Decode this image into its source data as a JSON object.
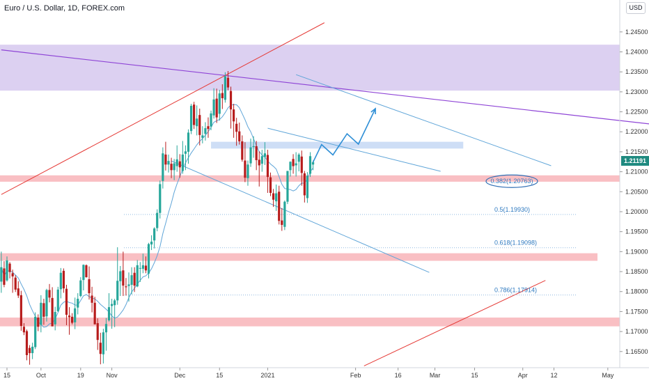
{
  "header": {
    "title": "Euro / U.S. Dollar, 1D, FOREX.com",
    "currency_button": "USD"
  },
  "colors": {
    "up": "#26a69a",
    "down": "#b71c1c",
    "ma": "#5fa5d8",
    "channel": "#5fa5d8",
    "resistance_line": "#8e44d6",
    "trend_line": "#e53935",
    "purple_zone": "#d6c8ee",
    "red_zone": "#f8b4b8",
    "blue_zone": "#c5d8f5",
    "forecast": "#2f8fd6",
    "badge": "#1f8a80"
  },
  "chart_data": {
    "type": "candlestick",
    "symbol": "Euro / U.S. Dollar",
    "interval": "1D",
    "source": "FOREX.com",
    "currency": "USD",
    "last_price": "1.21191",
    "y_axis": {
      "range": [
        1.162,
        1.2495
      ],
      "ticks": [
        "1.16500",
        "1.17000",
        "1.17500",
        "1.18000",
        "1.18500",
        "1.19000",
        "1.19500",
        "1.20000",
        "1.20500",
        "1.21000",
        "1.21500",
        "1.22000",
        "1.22500",
        "1.23000",
        "1.23500",
        "1.24000",
        "1.24500"
      ]
    },
    "x_axis": {
      "ticks": [
        {
          "label": "15",
          "day": 0
        },
        {
          "label": "Oct",
          "day": 12
        },
        {
          "label": "19",
          "day": 26
        },
        {
          "label": "Nov",
          "day": 37
        },
        {
          "label": "Dec",
          "day": 61
        },
        {
          "label": "15",
          "day": 75
        },
        {
          "label": "2021",
          "day": 92
        },
        {
          "label": "Feb",
          "day": 123
        },
        {
          "label": "16",
          "day": 138
        },
        {
          "label": "Mar",
          "day": 151
        },
        {
          "label": "15",
          "day": 165
        },
        {
          "label": "Apr",
          "day": 182
        },
        {
          "label": "12",
          "day": 193
        },
        {
          "label": "May",
          "day": 212
        }
      ]
    },
    "fib_levels": [
      {
        "label": "0.382(1.20763)",
        "price": 1.20763,
        "from_day": 195,
        "to_day": 195
      },
      {
        "label": "0.5(1.19930)",
        "price": 1.1993,
        "from_day": 41,
        "to_day": 172
      },
      {
        "label": "0.618(1.19098)",
        "price": 1.19098,
        "from_day": 41,
        "to_day": 172
      },
      {
        "label": "0.786(1.17914)",
        "price": 1.17914,
        "from_day": 41,
        "to_day": 172
      }
    ],
    "zones": [
      {
        "name": "supply-zone",
        "price_top": 1.2418,
        "price_bottom": 1.2303
      },
      {
        "name": "resistance-zone",
        "price_top": 1.2175,
        "price_bottom": 1.2158
      },
      {
        "name": "support-zone-1",
        "price_top": 1.2091,
        "price_bottom": 1.2075
      },
      {
        "name": "support-zone-2",
        "price_top": 1.1896,
        "price_bottom": 1.1877
      },
      {
        "name": "support-zone-3",
        "price_top": 1.1735,
        "price_bottom": 1.1713
      }
    ],
    "candles": [
      [
        -2,
        1.1825,
        1.19,
        1.1797,
        1.1861
      ],
      [
        -1,
        1.1858,
        1.1876,
        1.1811,
        1.1817
      ],
      [
        0,
        1.1828,
        1.1888,
        1.1825,
        1.1878
      ],
      [
        1,
        1.187,
        1.1874,
        1.1833,
        1.1849
      ],
      [
        2,
        1.1846,
        1.1855,
        1.1797,
        1.1838
      ],
      [
        3,
        1.1835,
        1.1841,
        1.1799,
        1.1805
      ],
      [
        4,
        1.1808,
        1.1826,
        1.1784,
        1.179
      ],
      [
        5,
        1.1791,
        1.1802,
        1.1702,
        1.1714
      ],
      [
        6,
        1.1712,
        1.1721,
        1.1691,
        1.1698
      ],
      [
        7,
        1.1701,
        1.1705,
        1.1628,
        1.1641
      ],
      [
        8,
        1.1659,
        1.1666,
        1.1617,
        1.1646
      ],
      [
        9,
        1.1646,
        1.1672,
        1.1631,
        1.1662
      ],
      [
        10,
        1.1661,
        1.1748,
        1.1656,
        1.1737
      ],
      [
        11,
        1.1735,
        1.1743,
        1.1701,
        1.1712
      ],
      [
        12,
        1.1717,
        1.1791,
        1.1698,
        1.1772
      ],
      [
        13,
        1.1771,
        1.1782,
        1.1717,
        1.1737
      ],
      [
        14,
        1.1738,
        1.1807,
        1.1725,
        1.1804
      ],
      [
        15,
        1.1804,
        1.1819,
        1.1773,
        1.1785
      ],
      [
        16,
        1.1784,
        1.1811,
        1.1713,
        1.1713
      ],
      [
        17,
        1.1718,
        1.1762,
        1.1703,
        1.1749
      ],
      [
        18,
        1.1751,
        1.1812,
        1.1749,
        1.1805
      ],
      [
        19,
        1.1806,
        1.1859,
        1.1783,
        1.1847
      ],
      [
        20,
        1.1852,
        1.1858,
        1.1797,
        1.1808
      ],
      [
        21,
        1.1807,
        1.1817,
        1.1716,
        1.1742
      ],
      [
        22,
        1.174,
        1.1761,
        1.1692,
        1.1736
      ],
      [
        23,
        1.1737,
        1.1746,
        1.1718,
        1.1722
      ],
      [
        24,
        1.1723,
        1.1785,
        1.1706,
        1.1758
      ],
      [
        25,
        1.176,
        1.1796,
        1.1743,
        1.1782
      ],
      [
        26,
        1.1789,
        1.1836,
        1.1786,
        1.1828
      ],
      [
        27,
        1.1829,
        1.1868,
        1.1803,
        1.1867
      ],
      [
        28,
        1.1866,
        1.1868,
        1.1835,
        1.1836
      ],
      [
        29,
        1.1831,
        1.1863,
        1.178,
        1.1796
      ],
      [
        30,
        1.179,
        1.1812,
        1.1748,
        1.1772
      ],
      [
        31,
        1.1772,
        1.1787,
        1.1718,
        1.1718
      ],
      [
        32,
        1.1721,
        1.1733,
        1.1654,
        1.1679
      ],
      [
        33,
        1.1672,
        1.1697,
        1.1618,
        1.1644
      ],
      [
        34,
        1.1643,
        1.1707,
        1.162,
        1.1698
      ],
      [
        35,
        1.1698,
        1.1734,
        1.1652,
        1.1719
      ],
      [
        36,
        1.1728,
        1.1796,
        1.1725,
        1.1761
      ],
      [
        37,
        1.1764,
        1.1782,
        1.1707,
        1.1769
      ],
      [
        38,
        1.1766,
        1.1782,
        1.1711,
        1.1778
      ],
      [
        39,
        1.1778,
        1.1911,
        1.1767,
        1.1827
      ],
      [
        40,
        1.1826,
        1.1864,
        1.1789,
        1.1851
      ],
      [
        41,
        1.1853,
        1.19,
        1.1789,
        1.1815
      ],
      [
        42,
        1.1813,
        1.1834,
        1.179,
        1.1811
      ],
      [
        43,
        1.1814,
        1.1848,
        1.1775,
        1.1818
      ],
      [
        44,
        1.1817,
        1.1861,
        1.1793,
        1.1841
      ],
      [
        45,
        1.1847,
        1.1861,
        1.1799,
        1.1815
      ],
      [
        46,
        1.1813,
        1.1879,
        1.1811,
        1.1866
      ],
      [
        47,
        1.1859,
        1.1874,
        1.1824,
        1.1859
      ],
      [
        48,
        1.1857,
        1.1895,
        1.1846,
        1.1866
      ],
      [
        49,
        1.1865,
        1.1888,
        1.1846,
        1.1853
      ],
      [
        50,
        1.1845,
        1.1922,
        1.1833,
        1.1919
      ],
      [
        51,
        1.1918,
        1.1941,
        1.1904,
        1.1925
      ],
      [
        52,
        1.1928,
        1.1961,
        1.1908,
        1.1958
      ],
      [
        53,
        1.1959,
        1.2006,
        1.1951,
        1.1997
      ],
      [
        54,
        1.1997,
        1.2078,
        1.1983,
        1.2069
      ],
      [
        55,
        1.2077,
        1.2161,
        1.2058,
        1.2146
      ],
      [
        56,
        1.2143,
        1.2175,
        1.2103,
        1.2118
      ],
      [
        57,
        1.2118,
        1.2143,
        1.2098,
        1.2127
      ],
      [
        58,
        1.212,
        1.2135,
        1.2084,
        1.2104
      ],
      [
        59,
        1.2104,
        1.2132,
        1.2079,
        1.2121
      ],
      [
        60,
        1.2114,
        1.2166,
        1.21,
        1.2131
      ],
      [
        61,
        1.2126,
        1.2144,
        1.2085,
        1.2111
      ],
      [
        62,
        1.2102,
        1.2177,
        1.2095,
        1.2143
      ],
      [
        63,
        1.2145,
        1.2166,
        1.2104,
        1.2151
      ],
      [
        64,
        1.215,
        1.2206,
        1.212,
        1.2198
      ],
      [
        65,
        1.2202,
        1.227,
        1.2194,
        1.2265
      ],
      [
        66,
        1.2268,
        1.2275,
        1.2207,
        1.2217
      ],
      [
        67,
        1.2214,
        1.2266,
        1.2191,
        1.2233
      ],
      [
        68,
        1.2242,
        1.2258,
        1.2166,
        1.2192
      ],
      [
        69,
        1.2185,
        1.2214,
        1.2171,
        1.2191
      ],
      [
        70,
        1.2195,
        1.2224,
        1.2178,
        1.2209
      ],
      [
        71,
        1.2214,
        1.2236,
        1.2185,
        1.2207
      ],
      [
        72,
        1.2213,
        1.2253,
        1.2204,
        1.2246
      ],
      [
        73,
        1.2241,
        1.2309,
        1.2233,
        1.2281
      ],
      [
        74,
        1.2283,
        1.2308,
        1.2222,
        1.2236
      ],
      [
        75,
        1.2245,
        1.2305,
        1.2228,
        1.2296
      ],
      [
        76,
        1.2297,
        1.2319,
        1.2257,
        1.2284
      ],
      [
        77,
        1.228,
        1.2349,
        1.2273,
        1.2339
      ],
      [
        78,
        1.2335,
        1.2352,
        1.2304,
        1.2311
      ],
      [
        79,
        1.2302,
        1.2313,
        1.2208,
        1.2256
      ],
      [
        80,
        1.2256,
        1.227,
        1.2185,
        1.2226
      ],
      [
        81,
        1.222,
        1.2235,
        1.2165,
        1.22
      ],
      [
        82,
        1.2201,
        1.2223,
        1.2168,
        1.2176
      ],
      [
        83,
        1.2176,
        1.2191,
        1.2125,
        1.213
      ],
      [
        84,
        1.2128,
        1.2174,
        1.2074,
        1.2085
      ],
      [
        85,
        1.2084,
        1.2128,
        1.2065,
        1.2118
      ],
      [
        86,
        1.2121,
        1.2183,
        1.2112,
        1.2161
      ],
      [
        87,
        1.2162,
        1.2189,
        1.2135,
        1.2164
      ],
      [
        88,
        1.2164,
        1.2177,
        1.2104,
        1.2129
      ],
      [
        89,
        1.213,
        1.2151,
        1.2063,
        1.2116
      ],
      [
        90,
        1.212,
        1.2155,
        1.21,
        1.2139
      ],
      [
        91,
        1.2137,
        1.2174,
        1.2117,
        1.2146
      ],
      [
        92,
        1.2142,
        1.2155,
        1.2047,
        1.2087
      ],
      [
        93,
        1.2086,
        1.2098,
        1.2039,
        1.2047
      ],
      [
        94,
        1.2046,
        1.2057,
        1.2012,
        1.203
      ],
      [
        95,
        1.2026,
        1.2068,
        1.2002,
        1.2046
      ],
      [
        96,
        1.205,
        1.2065,
        1.1968,
        1.1977
      ],
      [
        97,
        1.1978,
        1.2009,
        1.1952,
        1.1967
      ],
      [
        98,
        1.1962,
        1.2028,
        1.1954,
        1.2025
      ],
      [
        99,
        1.2025,
        1.2102,
        1.2019,
        1.2102
      ],
      [
        100,
        1.2104,
        1.2126,
        1.2088,
        1.2125
      ],
      [
        101,
        1.2132,
        1.2144,
        1.2095,
        1.2114
      ],
      [
        102,
        1.2116,
        1.2149,
        1.2088,
        1.2121
      ],
      [
        103,
        1.2125,
        1.2147,
        1.2101,
        1.2143
      ],
      [
        104,
        1.2138,
        1.2153,
        1.2065,
        1.2097
      ],
      [
        105,
        1.2096,
        1.2102,
        1.2023,
        1.2041
      ],
      [
        106,
        1.2034,
        1.2099,
        1.2022,
        1.209
      ],
      [
        107,
        1.2095,
        1.2149,
        1.2087,
        1.2139
      ],
      [
        108,
        1.2118,
        1.2128,
        1.2104,
        1.2124
      ]
    ]
  },
  "annotations": {
    "channel_upper": {
      "from": [
        102,
        1.2343
      ],
      "to": [
        192,
        1.2115
      ]
    },
    "channel_lower": {
      "from": [
        58,
        1.2127
      ],
      "to": [
        149,
        1.1848
      ]
    },
    "inner_line": {
      "from": [
        92,
        1.2209
      ],
      "to": [
        153,
        1.2101
      ]
    },
    "purple_line": {
      "from": [
        -2,
        1.2405
      ],
      "to": [
        230,
        1.2217
      ]
    },
    "red_line_upper": {
      "from": [
        -2,
        1.2043
      ],
      "to": [
        112,
        1.2473
      ]
    },
    "red_line_lower": {
      "from": [
        126,
        1.1614
      ],
      "to": [
        190,
        1.1828
      ]
    },
    "forecast_path": [
      [
        108,
        1.2124
      ],
      [
        111,
        1.2168
      ],
      [
        115,
        1.2142
      ],
      [
        120,
        1.2195
      ],
      [
        124,
        1.2169
      ],
      [
        130,
        1.2258
      ]
    ]
  }
}
